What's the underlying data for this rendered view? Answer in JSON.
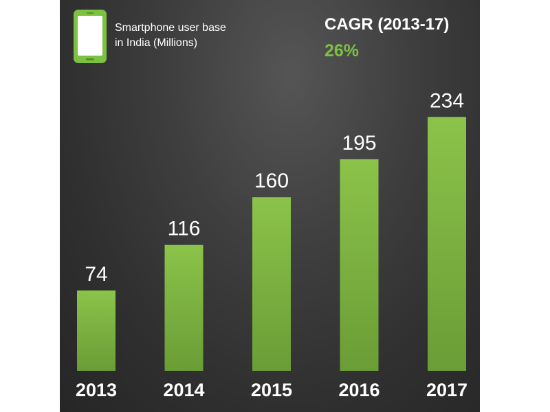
{
  "header": {
    "subtitle_line1": "Smartphone user base",
    "subtitle_line2": "in India (Millions)",
    "cagr_label": "CAGR (2013-17)",
    "cagr_value": "26%"
  },
  "colors": {
    "accent": "#7cc142",
    "bar_top": "#8bc34a",
    "bar_bottom": "#6a9d36",
    "icon_screen": "#ffffff"
  },
  "icons": {
    "header_icon": "smartphone-icon"
  },
  "chart_data": {
    "type": "bar",
    "title": "",
    "xlabel": "",
    "ylabel": "",
    "categories": [
      "2013",
      "2014",
      "2015",
      "2016",
      "2017"
    ],
    "values": [
      74,
      116,
      160,
      195,
      234
    ],
    "ylim": [
      0,
      250
    ],
    "grid": false,
    "legend": "none"
  }
}
